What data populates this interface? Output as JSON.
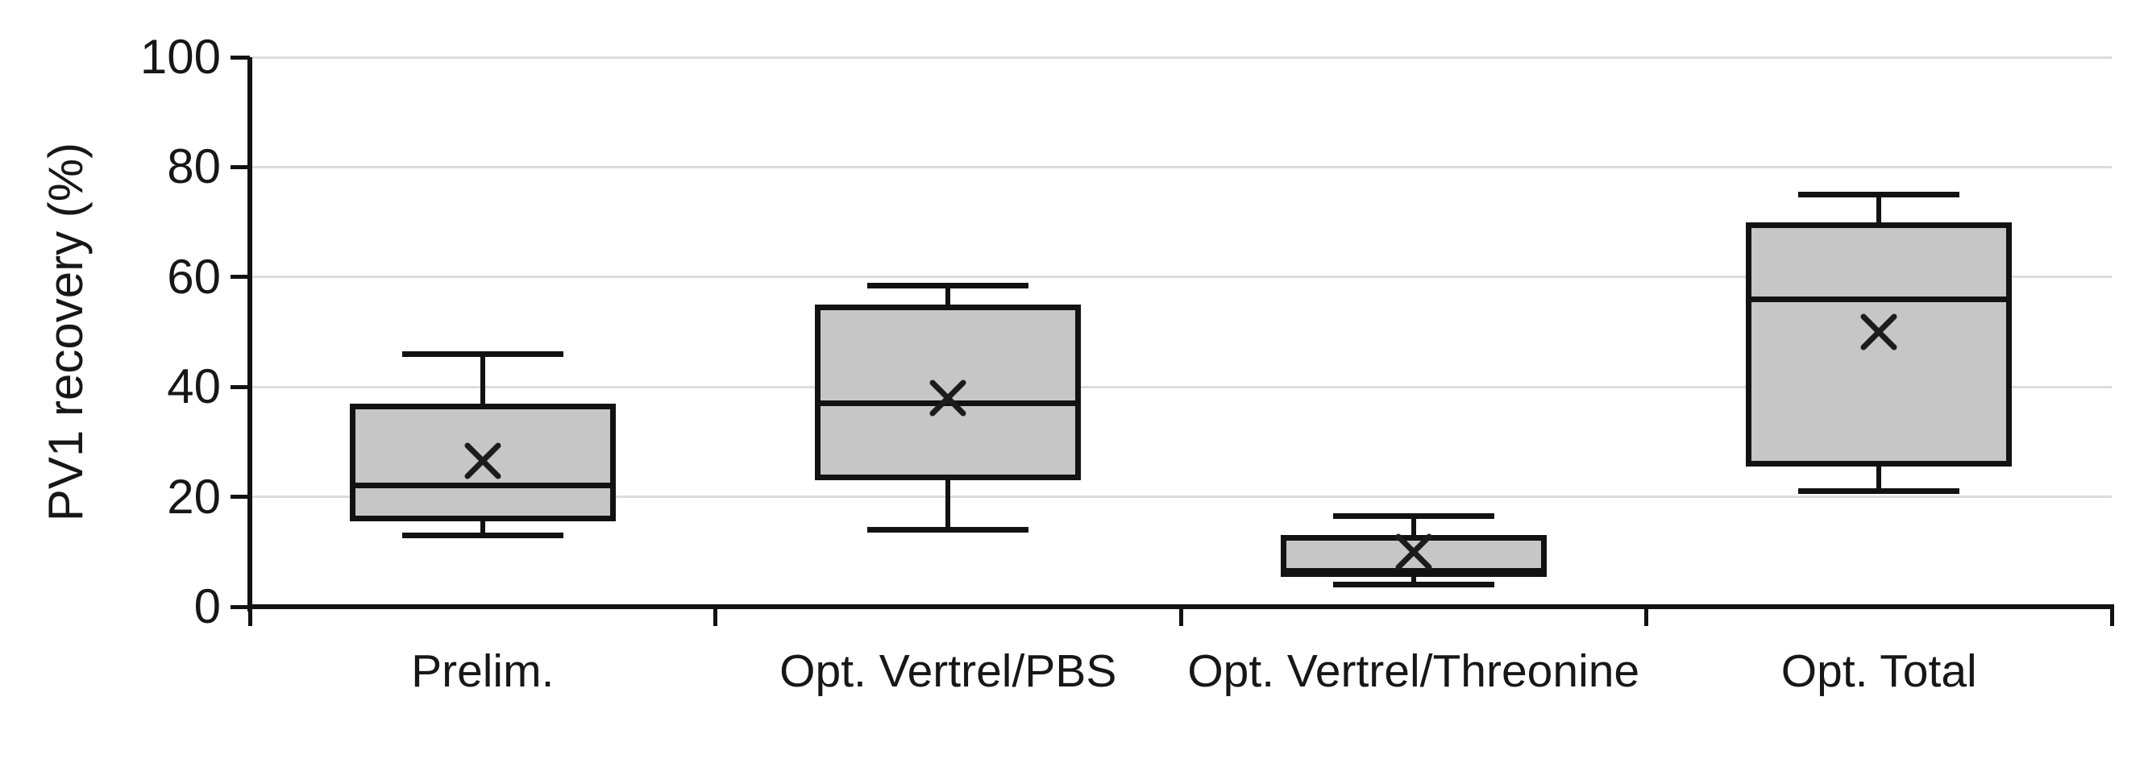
{
  "chart_data": {
    "type": "box",
    "title": "",
    "xlabel": "",
    "ylabel": "PV1 recovery (%)",
    "ylim": [
      0,
      100
    ],
    "yticks": [
      0,
      20,
      40,
      60,
      80,
      100
    ],
    "grid": true,
    "legend_position": "none",
    "categories": [
      "Prelim.",
      "Opt. Vertrel/PBS",
      "Opt. Vertrel/Threonine",
      "Opt. Total"
    ],
    "series": [
      {
        "name": "Prelim.",
        "min": 13,
        "q1": 15.5,
        "median": 22,
        "q3": 37,
        "max": 46,
        "mean": 26.5
      },
      {
        "name": "Opt. Vertrel/PBS",
        "min": 14,
        "q1": 23,
        "median": 37,
        "q3": 55,
        "max": 58.5,
        "mean": 38
      },
      {
        "name": "Opt. Vertrel/Threonine",
        "min": 4,
        "q1": 6,
        "median": 6,
        "q3": 13,
        "max": 16.5,
        "mean": 10
      },
      {
        "name": "Opt. Total",
        "min": 21,
        "q1": 25.5,
        "median": 56,
        "q3": 70,
        "max": 75,
        "mean": 50
      }
    ]
  },
  "colors": {
    "background": "#ffffff",
    "box_fill": "#c6c6c6",
    "box_border": "#121212",
    "median": "#121212",
    "whisker": "#121212",
    "mean_marker": "#1c1c1c",
    "gridline": "#dcdcdc",
    "axis": "#121212",
    "text": "#171717"
  }
}
